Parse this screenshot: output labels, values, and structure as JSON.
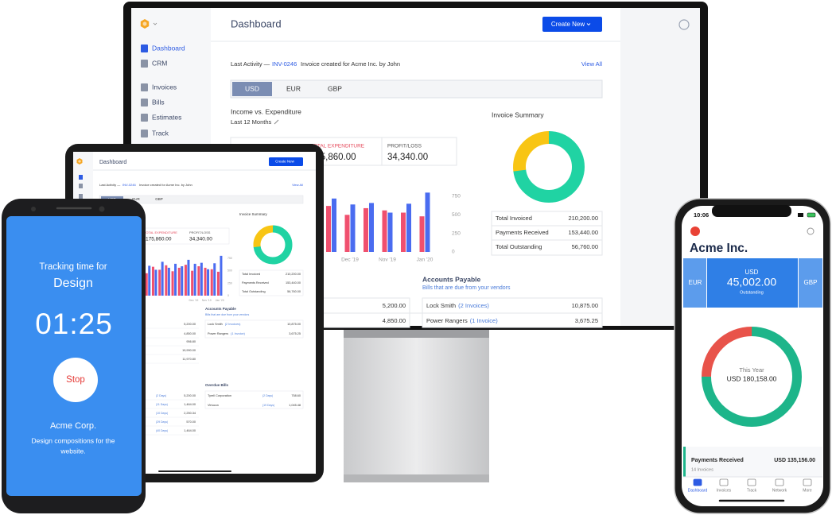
{
  "dashboard": {
    "sidebar": [
      "Dashboard",
      "CRM",
      "Invoices",
      "Bills",
      "Estimates",
      "Track"
    ],
    "title": "Dashboard",
    "create_button": "Create New",
    "last_activity": {
      "label": "Last Activity —",
      "link": "INV-0246",
      "text": "Invoice created for Acme Inc. by John",
      "view_all": "View All"
    },
    "currencies": [
      "USD",
      "EUR",
      "GBP"
    ],
    "income_title": "Income vs. Expenditure",
    "period": "Last 12 Months",
    "cards": [
      {
        "label": "TOTAL EXPENDITURE",
        "value": "175,860.00"
      },
      {
        "label": "PROFIT/LOSS",
        "value": "34,340.00"
      }
    ],
    "invoice_summary": {
      "title": "Invoice Summary",
      "rows": [
        [
          "Total Invoiced",
          "210,200.00"
        ],
        [
          "Payments Received",
          "153,440.00"
        ],
        [
          "Total Outstanding",
          "56,760.00"
        ]
      ]
    },
    "accounts_payable": {
      "title": "Accounts Payable",
      "subtitle": "Bills that are due from your vendors",
      "rows": [
        [
          "Lock Smith",
          "(2 Invoices)",
          "10,875.00"
        ],
        [
          "Power Rangers",
          "(1 Invoice)",
          "3,675.25"
        ]
      ]
    },
    "receivables": [
      "5,200.00",
      "4,850.00",
      "956.80",
      "19,990.00",
      "11,970.80"
    ],
    "receivables_overdue": [
      [
        "(2 Days)",
        "5,200.00"
      ],
      [
        "(11 Days)",
        "1,464.00"
      ],
      [
        "(10 Days)",
        "2,250.34"
      ],
      [
        "(29 Days)",
        "570.00"
      ],
      [
        "(40 Days)",
        "1,464.00"
      ]
    ],
    "overdue_bills": {
      "title": "Overdue Bills",
      "rows": [
        [
          "Tyrell Corporation",
          "(2 Days)",
          "758.60"
        ],
        [
          "Virtucon",
          "(19 Days)",
          "1,045.48"
        ]
      ]
    }
  },
  "chart_data": {
    "type": "bar",
    "categories": [
      null,
      null,
      null,
      null,
      null,
      null,
      null,
      "Dec '19",
      null,
      "Nov '19",
      null,
      "Jan '20"
    ],
    "series": [
      {
        "color": "#f0506e",
        "values": [
          450,
          580,
          520,
          610,
          490,
          560,
          620,
          500,
          590,
          560,
          530,
          480
        ]
      },
      {
        "color": "#4a6cf0",
        "values": [
          600,
          520,
          680,
          560,
          640,
          590,
          720,
          640,
          660,
          530,
          650,
          800
        ]
      }
    ],
    "ylim": [
      0,
      750
    ],
    "yticks": [
      0,
      250,
      500,
      750
    ]
  },
  "android": {
    "heading": "Tracking time for",
    "task": "Design",
    "timer": "01:25",
    "button": "Stop",
    "client": "Acme Corp.",
    "description": [
      "Design compositions for the",
      "website."
    ]
  },
  "iphone": {
    "time": "10:06",
    "company": "Acme Inc.",
    "currencies": [
      "EUR",
      "USD",
      "GBP"
    ],
    "outstanding": {
      "amount": "45,002.00",
      "label": "Outstanding"
    },
    "this_year": {
      "label": "This Year",
      "amount": "USD 180,158.00"
    },
    "payments": {
      "label": "Payments Received",
      "amount": "USD 135,156.00",
      "count": "14 Invoices"
    },
    "tabs": [
      "Dashboard",
      "Invoices",
      "Track",
      "Network",
      "More"
    ]
  }
}
